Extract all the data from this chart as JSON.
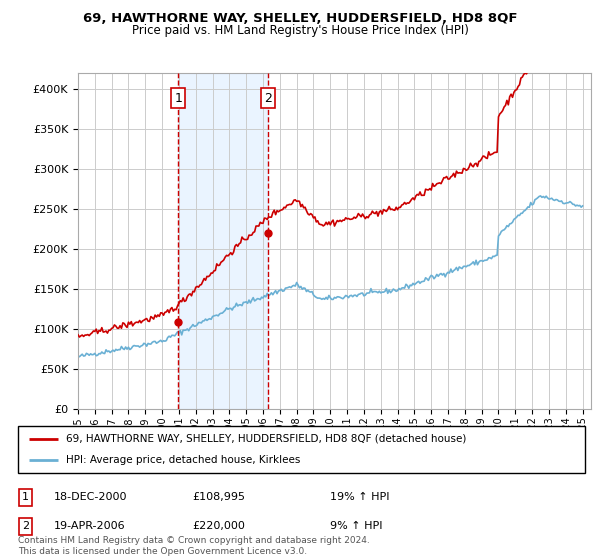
{
  "title": "69, HAWTHORNE WAY, SHELLEY, HUDDERSFIELD, HD8 8QF",
  "subtitle": "Price paid vs. HM Land Registry's House Price Index (HPI)",
  "legend_line1": "69, HAWTHORNE WAY, SHELLEY, HUDDERSFIELD, HD8 8QF (detached house)",
  "legend_line2": "HPI: Average price, detached house, Kirklees",
  "sale1_label": "1",
  "sale1_date": "18-DEC-2000",
  "sale1_price": "£108,995",
  "sale1_hpi": "19% ↑ HPI",
  "sale2_label": "2",
  "sale2_date": "19-APR-2006",
  "sale2_price": "£220,000",
  "sale2_hpi": "9% ↑ HPI",
  "sale1_year": 2000.96,
  "sale1_value": 108995,
  "sale2_year": 2006.3,
  "sale2_value": 220000,
  "copyright": "Contains HM Land Registry data © Crown copyright and database right 2024.\nThis data is licensed under the Open Government Licence v3.0.",
  "hpi_color": "#6ab0d4",
  "price_color": "#cc0000",
  "marker_color": "#cc0000",
  "vline_color": "#cc0000",
  "grid_color": "#cccccc",
  "background_color": "#ffffff",
  "shaded_color": "#ddeeff",
  "ylim": [
    0,
    420000
  ],
  "xlim_start": 1995,
  "xlim_end": 2025.5
}
